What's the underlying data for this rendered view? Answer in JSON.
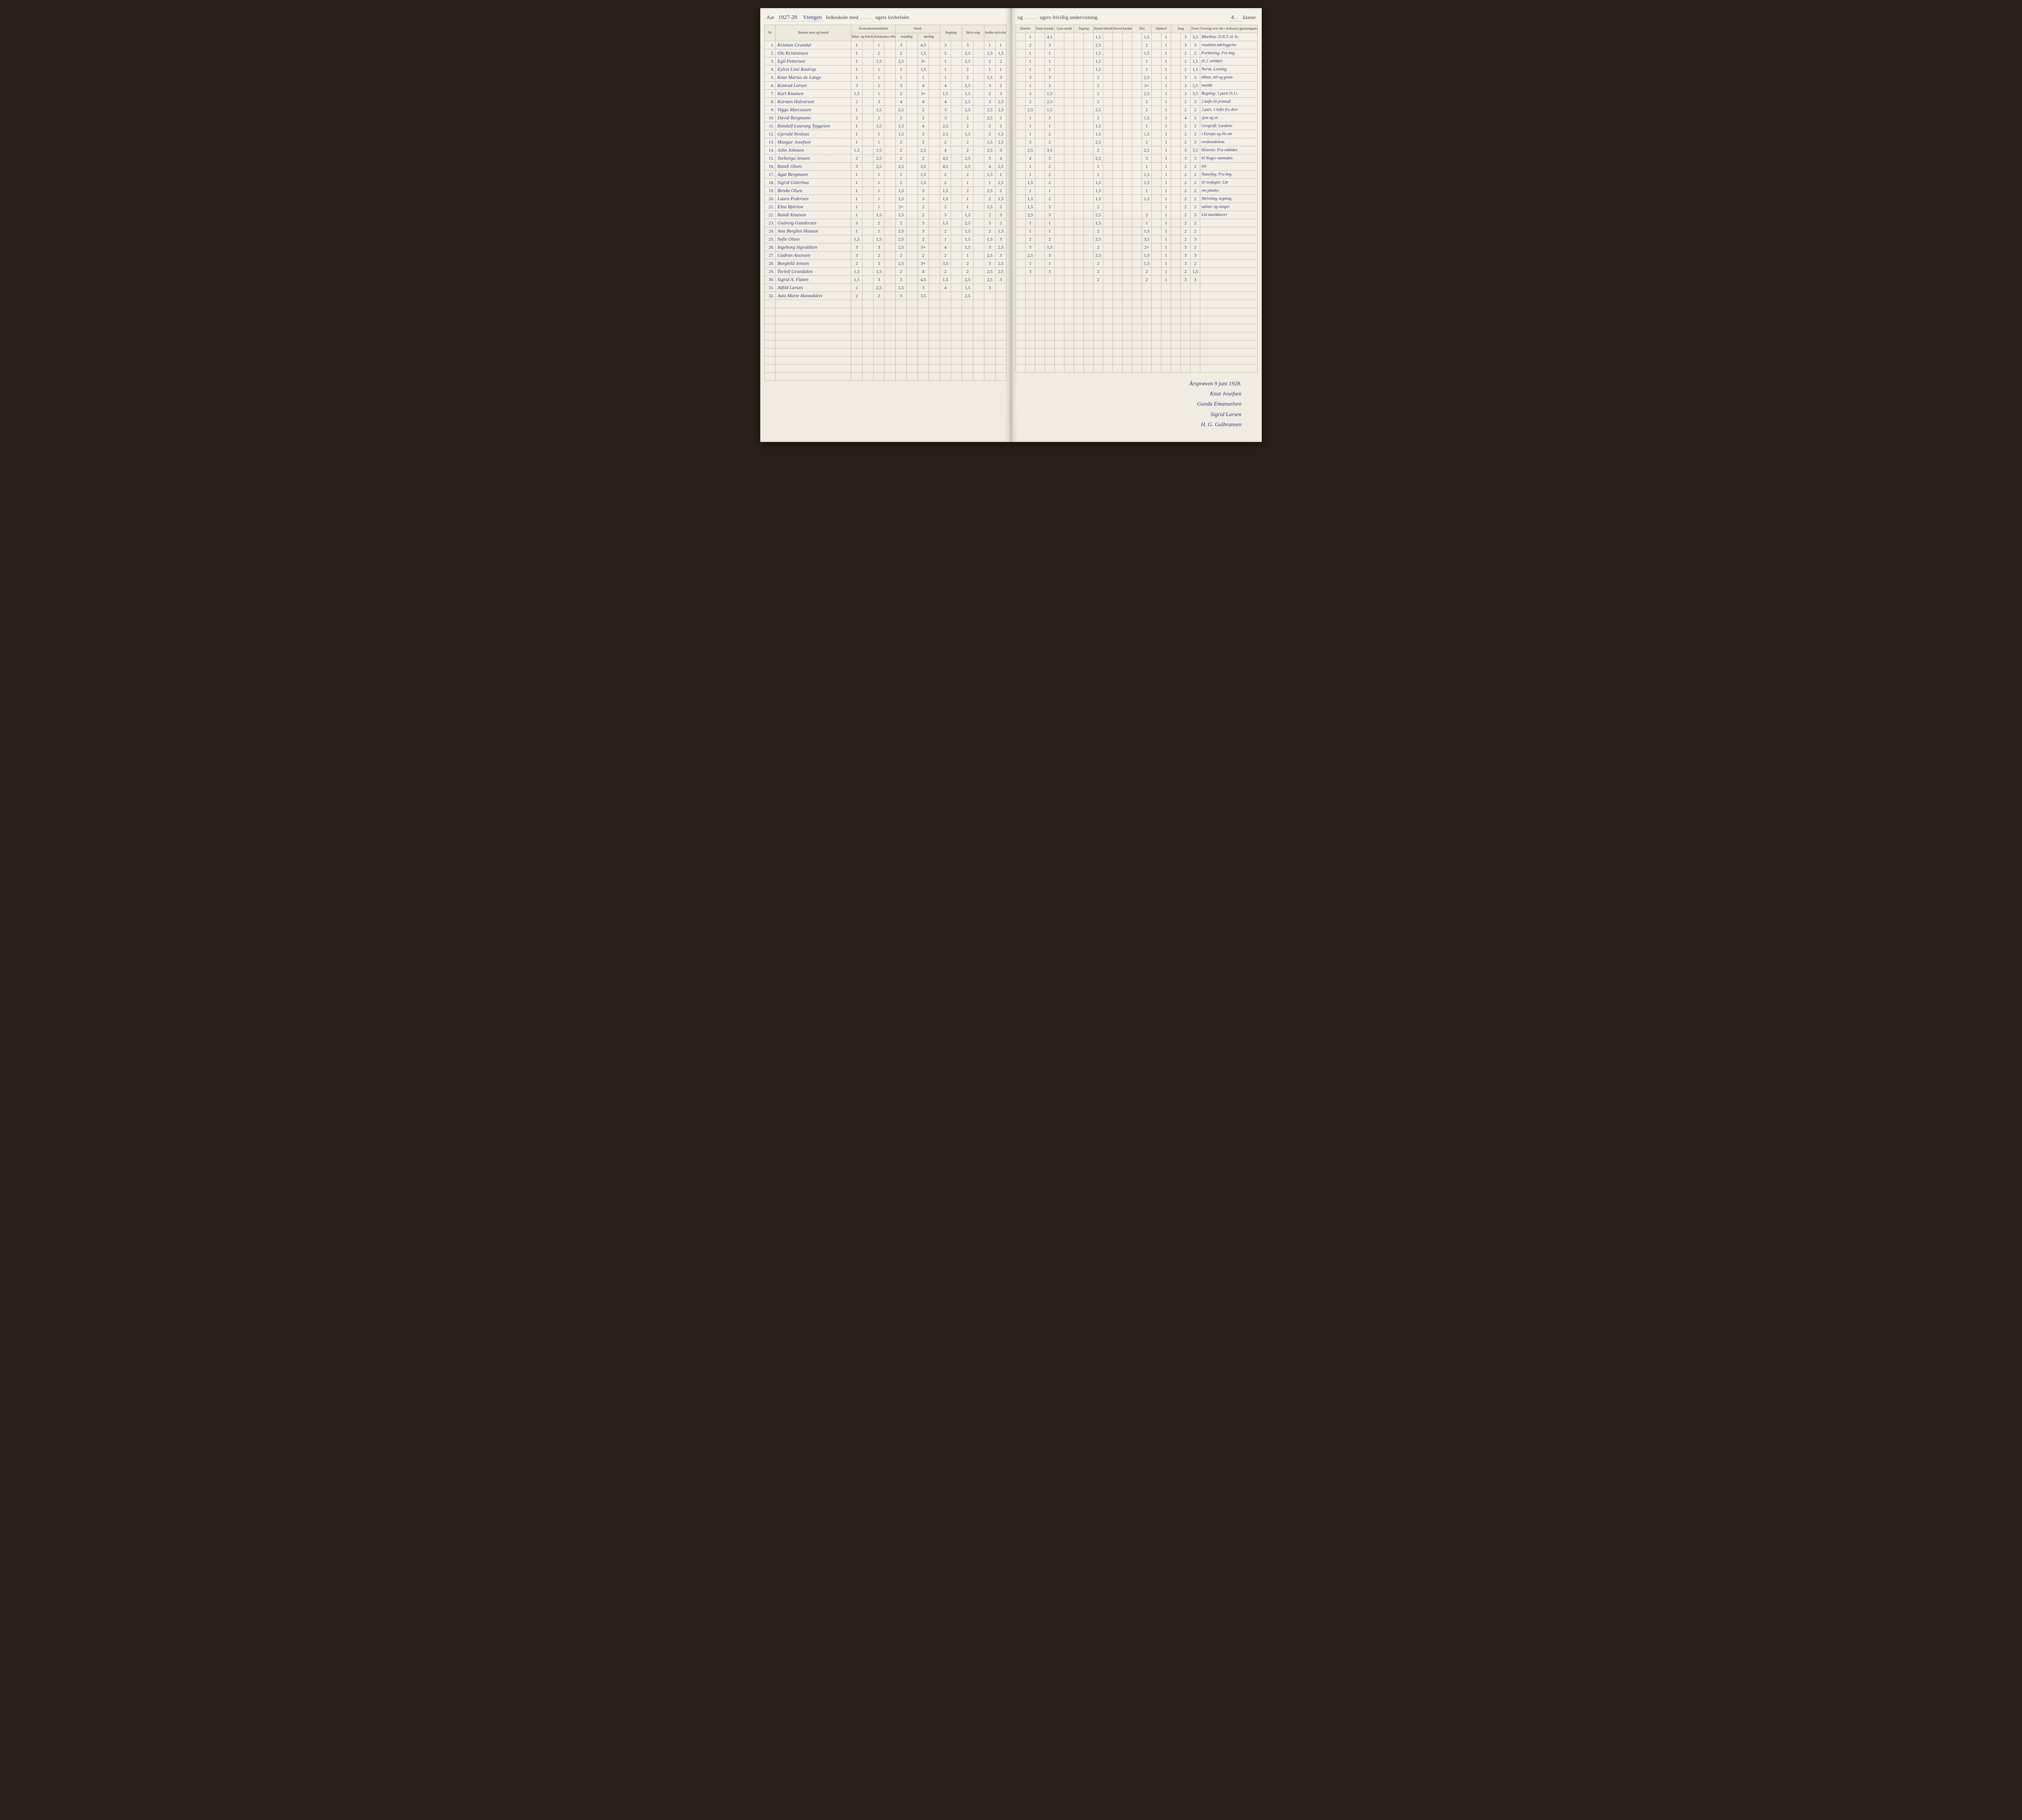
{
  "header": {
    "aar_label": "Aar",
    "aar_value": "1927-28",
    "school": "Vrengen",
    "text1": "folkeskole med",
    "ugers1": "",
    "text2": "ugers lovbefalet",
    "og": "og",
    "ugers2": "",
    "text3": "ugers frivillig undervisning.",
    "klasse_value": "4.",
    "klasse_label": "klasse"
  },
  "columns_left": {
    "nr": "Nr.",
    "name": "Barnets navn og bosted",
    "kristen": "Kristendomskundskab",
    "bibel": "Bibel- og kirkehistorie",
    "katek": "Katekismus eller forklaring",
    "norsk": "Norsk",
    "mundtlig": "mundtlig",
    "skriftlig": "skriftlig",
    "regning": "Regning",
    "skrivning": "Skriv-ning",
    "jordb": "Jordbe-skrivelse"
  },
  "columns_right": {
    "historie": "Historie",
    "natur": "Natur-kundsk.",
    "gym": "Gym-nastik",
    "tegning": "Tegning",
    "haand": "Haand-arbeide",
    "hovedk": "Hoved-karakter",
    "flid": "Flid",
    "opforsel": "Opførsel",
    "sang": "Sang",
    "evner": "Evner",
    "oversigt": "Oversigt over det i skoleaaret gjennemgaaede"
  },
  "rows": [
    {
      "nr": "1.",
      "name": "Kristian Grandal",
      "l": [
        "1",
        "",
        "1",
        "",
        "3",
        "",
        "4,5",
        "",
        "3",
        "",
        "3",
        "",
        "1",
        "1"
      ],
      "r": [
        "",
        "1",
        "",
        "4,5",
        "",
        "",
        "",
        "",
        "1,5",
        "",
        "",
        "",
        "",
        "1,5",
        "",
        "1",
        "",
        "3",
        "3,5"
      ],
      "o": "Bibelhist: D.N.T. til Je-"
    },
    {
      "nr": "2.",
      "name": "Ole Kristiansen",
      "l": [
        "1",
        "",
        "2",
        "",
        "2",
        "",
        "1,5",
        "",
        "2",
        "",
        "2,5",
        "",
        "1,5",
        "1,5"
      ],
      "r": [
        "",
        "2",
        "",
        "3",
        "",
        "",
        "",
        "",
        "2,5",
        "",
        "",
        "",
        "",
        "2",
        "",
        "1",
        "",
        "3",
        "3"
      ],
      "o": "rusalems ødeleggelse."
    },
    {
      "nr": "3.",
      "name": "Egil Pettersen",
      "l": [
        "1",
        "",
        "1,5",
        "",
        "2,5",
        "",
        "3+",
        "",
        "1",
        "",
        "2,5",
        "",
        "2",
        "2"
      ],
      "r": [
        "",
        "1",
        "",
        "1",
        "",
        "",
        "",
        "",
        "1,5",
        "",
        "",
        "",
        "",
        "1,5",
        "",
        "1",
        "",
        "2",
        "2"
      ],
      "o": "Forklaring: Fra beg."
    },
    {
      "nr": "4.",
      "name": "Eylert Linö Rostrup",
      "l": [
        "1",
        "",
        "1",
        "",
        "1",
        "",
        "1,5",
        "",
        "1",
        "",
        "2",
        "",
        "1",
        "1"
      ],
      "r": [
        "",
        "1",
        "",
        "1",
        "",
        "",
        "",
        "",
        "1,5",
        "",
        "",
        "",
        "",
        "1",
        "",
        "1",
        "",
        "2",
        "1,5"
      ],
      "o": "til 2. artikkel"
    },
    {
      "nr": "5.",
      "name": "Knut Marius de Lange",
      "l": [
        "1",
        "",
        "1",
        "",
        "1",
        "",
        "1",
        "",
        "1",
        "",
        "2",
        "",
        "1,5",
        "3"
      ],
      "r": [
        "",
        "1",
        "",
        "1",
        "",
        "",
        "",
        "",
        "1,5",
        "",
        "",
        "",
        "",
        "1",
        "",
        "1",
        "",
        "2",
        "1,5"
      ],
      "o": "Norsk: Lesning,"
    },
    {
      "nr": "6.",
      "name": "Konrad Larsen",
      "l": [
        "3",
        "",
        "2",
        "",
        "3",
        "",
        "4",
        "",
        "4",
        "",
        "2,5",
        "",
        "3",
        "2"
      ],
      "r": [
        "",
        "3",
        "",
        "3",
        "",
        "",
        "",
        "",
        "2",
        "",
        "",
        "",
        "",
        "2,5",
        "",
        "1",
        "",
        "3",
        "3"
      ],
      "o": "diktat, stil og gram-"
    },
    {
      "nr": "7.",
      "name": "Karl Knutsen",
      "l": [
        "1,5",
        "",
        "1",
        "",
        "2",
        "",
        "3+",
        "",
        "1,5",
        "",
        "1,5",
        "",
        "2",
        "3"
      ],
      "r": [
        "",
        "1",
        "",
        "3",
        "",
        "",
        "",
        "",
        "2",
        "",
        "",
        "",
        "",
        "2+",
        "",
        "1",
        "",
        "3",
        "2,5"
      ],
      "o": "matikk"
    },
    {
      "nr": "8.",
      "name": "Karsten Halvorsen",
      "l": [
        "2",
        "",
        "3",
        "",
        "4",
        "",
        "4",
        "",
        "4",
        "",
        "2,5",
        "",
        "3",
        "2,5"
      ],
      "r": [
        "",
        "3",
        "",
        "1,5",
        "",
        "",
        "",
        "",
        "2",
        "",
        "",
        "",
        "",
        "2,5",
        "",
        "1",
        "",
        "3",
        "3,5"
      ],
      "o": "Regning: 1.parti O.J.s"
    },
    {
      "nr": "9.",
      "name": "Viggo Marcussen",
      "l": [
        "1",
        "",
        "1,5",
        "",
        "2,5",
        "",
        "2",
        "",
        "3",
        "",
        "2,5",
        "",
        "2,5",
        "2,5"
      ],
      "r": [
        "",
        "2",
        "",
        "2,5",
        "",
        "",
        "",
        "",
        "2",
        "",
        "",
        "",
        "",
        "2",
        "",
        "1",
        "",
        "2",
        "3"
      ],
      "o": "2.hefte til primtall"
    },
    {
      "nr": "10.",
      "name": "David Bergmann",
      "l": [
        "2",
        "",
        "2",
        "",
        "2",
        "",
        "2",
        "",
        "3",
        "",
        "2",
        "",
        "2,5",
        "2"
      ],
      "r": [
        "",
        "2,5",
        "",
        "1,5",
        "",
        "",
        "",
        "",
        "2,5",
        "",
        "",
        "",
        "",
        "2",
        "",
        "1",
        "",
        "2",
        "2"
      ],
      "o": "2.part. 1.hefte fra divi-"
    },
    {
      "nr": "11.",
      "name": "Randulf Laurang Tyggesen",
      "l": [
        "1",
        "",
        "1,5",
        "",
        "1,5",
        "",
        "4",
        "",
        "2,5",
        "",
        "2",
        "",
        "2",
        "2"
      ],
      "r": [
        "",
        "1",
        "",
        "3",
        "",
        "",
        "",
        "",
        "2",
        "",
        "",
        "",
        "",
        "1,5",
        "",
        "1",
        "",
        "4",
        "3"
      ],
      "o": "sjon og ut."
    },
    {
      "nr": "12.",
      "name": "Gjeruld Neslaus",
      "l": [
        "1",
        "",
        "1",
        "",
        "1,5",
        "",
        "3",
        "",
        "2,5",
        "",
        "1,5",
        "",
        "2",
        "1,5"
      ],
      "r": [
        "",
        "1",
        "",
        "1",
        "",
        "",
        "",
        "",
        "1,5",
        "",
        "",
        "",
        "",
        "1",
        "",
        "1",
        "",
        "2",
        "2"
      ],
      "o": "Geografi: Landene"
    },
    {
      "nr": "13.",
      "name": "Mangor Josefsen",
      "l": [
        "1",
        "",
        "1",
        "",
        "2",
        "",
        "2",
        "",
        "2",
        "",
        "2",
        "",
        "1,5",
        "2,5"
      ],
      "r": [
        "",
        "1",
        "",
        "2",
        "",
        "",
        "",
        "",
        "1,5",
        "",
        "",
        "",
        "",
        "1,5",
        "",
        "1",
        "",
        "2",
        "2"
      ],
      "o": "i Europa og litt om"
    },
    {
      "nr": "14.",
      "name": "John Johnsen",
      "l": [
        "1,5",
        "",
        "1,5",
        "",
        "2",
        "",
        "2,5",
        "",
        "4",
        "",
        "2",
        "",
        "2,5",
        "3"
      ],
      "r": [
        "",
        "3",
        "",
        "2",
        "",
        "",
        "",
        "",
        "2,5",
        "",
        "",
        "",
        "",
        "2",
        "",
        "1",
        "",
        "2",
        "3"
      ],
      "o": "verdensdelene."
    },
    {
      "nr": "15.",
      "name": "Torborga Jensen",
      "l": [
        "2",
        "",
        "2,5",
        "",
        "2",
        "",
        "2",
        "",
        "4,5",
        "",
        "2,5",
        "",
        "3",
        "4"
      ],
      "r": [
        "",
        "2,5",
        "",
        "3,5",
        "",
        "",
        "",
        "",
        "2",
        "",
        "",
        "",
        "",
        "2,5",
        "",
        "1",
        "",
        "3",
        "3,5"
      ],
      "o": "Historie: Fra oldtiden"
    },
    {
      "nr": "16.",
      "name": "Randi Olsen",
      "l": [
        "3",
        "",
        "2,5",
        "",
        "2,5",
        "",
        "3,5",
        "",
        "4,5",
        "",
        "2,5",
        "",
        "4",
        "2,5"
      ],
      "r": [
        "",
        "4",
        "",
        "3",
        "",
        "",
        "",
        "",
        "2,5",
        "",
        "",
        "",
        "",
        "3",
        "",
        "1",
        "",
        "3",
        "3"
      ],
      "o": "til Noges vanmakts-"
    },
    {
      "nr": "17.",
      "name": "Agat Bergmann",
      "l": [
        "1",
        "",
        "1",
        "",
        "1",
        "",
        "1,5",
        "",
        "2",
        "",
        "2",
        "",
        "1,5",
        "1"
      ],
      "r": [
        "",
        "1",
        "",
        "2",
        "",
        "",
        "",
        "",
        "1",
        "",
        "",
        "",
        "",
        "1",
        "",
        "1",
        "",
        "2",
        "2"
      ],
      "o": "tid"
    },
    {
      "nr": "18.",
      "name": "Sigrid Gitterhus",
      "l": [
        "1",
        "",
        "1",
        "",
        "2",
        "",
        "1,5",
        "",
        "2",
        "",
        "1",
        "",
        "1",
        "2,5"
      ],
      "r": [
        "",
        "1",
        "",
        "2",
        "",
        "",
        "",
        "",
        "1",
        "",
        "",
        "",
        "",
        "1,5",
        "",
        "1",
        "",
        "2",
        "2"
      ],
      "o": "Naturfag: Fra beg."
    },
    {
      "nr": "19.",
      "name": "Benda Olsen",
      "l": [
        "1",
        "",
        "1",
        "",
        "1,5",
        "",
        "3",
        "",
        "1,5",
        "",
        "2",
        "",
        "2,5",
        "2"
      ],
      "r": [
        "",
        "1,5",
        "",
        "2",
        "",
        "",
        "",
        "",
        "1,5",
        "",
        "",
        "",
        "",
        "1,5",
        "",
        "1",
        "",
        "2",
        "2"
      ],
      "o": "til rovfugler. Litt"
    },
    {
      "nr": "20.",
      "name": "Laura Pedersen",
      "l": [
        "1",
        "",
        "1",
        "",
        "1,5",
        "",
        "3",
        "",
        "1,5",
        "",
        "1",
        "",
        "2",
        "1,5"
      ],
      "r": [
        "",
        "1",
        "",
        "1",
        "",
        "",
        "",
        "",
        "1,5",
        "",
        "",
        "",
        "",
        "1",
        "",
        "1",
        "",
        "2",
        "2"
      ],
      "o": "om planter."
    },
    {
      "nr": "21.",
      "name": "Elna Björlow",
      "l": [
        "1",
        "",
        "1",
        "",
        "2+",
        "",
        "2",
        "",
        "2",
        "",
        "1",
        "",
        "1,5",
        "2"
      ],
      "r": [
        "",
        "1,5",
        "",
        "2",
        "",
        "",
        "",
        "",
        "1,5",
        "",
        "",
        "",
        "",
        "1,5",
        "",
        "1",
        "",
        "2",
        "2"
      ],
      "o": "Skrivning, tegning,"
    },
    {
      "nr": "22.",
      "name": "Randi Knutsen",
      "l": [
        "1",
        "",
        "1,5",
        "",
        "1,5",
        "",
        "2",
        "",
        "3",
        "",
        "1,5",
        "",
        "2",
        "3"
      ],
      "r": [
        "",
        "1,5",
        "",
        "3",
        "",
        "",
        "",
        "",
        "2",
        "",
        "",
        "",
        "",
        "",
        "",
        "1",
        "",
        "2",
        "2"
      ],
      "o": "salmer og sanger."
    },
    {
      "nr": "23.",
      "name": "Gudveig Gundersen",
      "l": [
        "3",
        "",
        "2",
        "",
        "2",
        "",
        "3",
        "",
        "1,5",
        "",
        "2,5",
        "",
        "3",
        "2"
      ],
      "r": [
        "",
        "2,5",
        "",
        "3",
        "",
        "",
        "",
        "",
        "2,5",
        "",
        "",
        "",
        "",
        "2",
        "",
        "1",
        "",
        "2",
        "3"
      ],
      "o": "Litt musikkteori"
    },
    {
      "nr": "24.",
      "name": "Ana Bergliot Hansen",
      "l": [
        "1",
        "",
        "1",
        "",
        "2,5",
        "",
        "3",
        "",
        "2",
        "",
        "1,5",
        "",
        "2",
        "1,5"
      ],
      "r": [
        "",
        "1",
        "",
        "1",
        "",
        "",
        "",
        "",
        "1,5",
        "",
        "",
        "",
        "",
        "1",
        "",
        "1",
        "",
        "2",
        "2"
      ],
      "o": ""
    },
    {
      "nr": "25.",
      "name": "Sofie Olsen",
      "l": [
        "1,5",
        "",
        "1,5",
        "",
        "2,5",
        "",
        "2",
        "",
        "1",
        "",
        "1,5",
        "",
        "1,5",
        "3"
      ],
      "r": [
        "",
        "1",
        "",
        "1",
        "",
        "",
        "",
        "",
        "2",
        "",
        "",
        "",
        "",
        "1,5",
        "",
        "1",
        "",
        "2",
        "2"
      ],
      "o": ""
    },
    {
      "nr": "26.",
      "name": "Ingeborg Sigvaldsen",
      "l": [
        "3",
        "",
        "3",
        "",
        "2,5",
        "",
        "3+",
        "",
        "4",
        "",
        "1,5",
        "",
        "3",
        "2,5"
      ],
      "r": [
        "",
        "2",
        "",
        "2",
        "",
        "",
        "",
        "",
        "2,5",
        "",
        "",
        "",
        "",
        "3,5",
        "",
        "1",
        "",
        "2",
        "3"
      ],
      "o": ""
    },
    {
      "nr": "27.",
      "name": "Gudrun Anonsen",
      "l": [
        "3",
        "",
        "2",
        "",
        "2",
        "",
        "2",
        "",
        "2",
        "",
        "1",
        "",
        "2,5",
        "3"
      ],
      "r": [
        "",
        "3",
        "",
        "1,5",
        "",
        "",
        "",
        "",
        "2",
        "",
        "",
        "",
        "",
        "2+",
        "",
        "1",
        "",
        "3",
        "2"
      ],
      "o": ""
    },
    {
      "nr": "28.",
      "name": "Borghild Jensen",
      "l": [
        "2",
        "",
        "3",
        "",
        "2,5",
        "",
        "3+",
        "",
        "3,5",
        "",
        "2",
        "",
        "3",
        "2,5"
      ],
      "r": [
        "",
        "2,5",
        "",
        "3",
        "",
        "",
        "",
        "",
        "2,5",
        "",
        "",
        "",
        "",
        "1,5",
        "",
        "1",
        "",
        "3",
        "3"
      ],
      "o": ""
    },
    {
      "nr": "29.",
      "name": "Torleif Grandalen",
      "l": [
        "1,5",
        "",
        "1,5",
        "",
        "2",
        "",
        "4",
        "",
        "2",
        "",
        "2",
        "",
        "2,5",
        "2,5"
      ],
      "r": [
        "",
        "1",
        "",
        "1",
        "",
        "",
        "",
        "",
        "2",
        "",
        "",
        "",
        "",
        "1,5",
        "",
        "1",
        "",
        "3",
        "2"
      ],
      "o": ""
    },
    {
      "nr": "30.",
      "name": "Sigrid A. Flaten",
      "l": [
        "1,5",
        "",
        "3",
        "",
        "3",
        "",
        "4,5",
        "",
        "1,5",
        "",
        "2,5",
        "",
        "2,5",
        "3"
      ],
      "r": [
        "",
        "3",
        "",
        "3",
        "",
        "",
        "",
        "",
        "2",
        "",
        "",
        "",
        "",
        "2",
        "",
        "1",
        "",
        "2",
        "1,5"
      ],
      "o": ""
    },
    {
      "nr": "31.",
      "name": "Alfild Larsen",
      "l": [
        "2",
        "",
        "2,5",
        "",
        "1,5",
        "",
        "3",
        "",
        "4",
        "",
        "1,5",
        "",
        "3",
        ""
      ],
      "r": [
        "",
        "",
        "",
        "",
        "",
        "",
        "",
        "",
        "2",
        "",
        "",
        "",
        "",
        "2",
        "",
        "1",
        "",
        "3",
        "3"
      ],
      "o": ""
    },
    {
      "nr": "32.",
      "name": "Asta Marie Hannekleiv",
      "l": [
        "2",
        "",
        "2",
        "",
        "3",
        "",
        "3,5",
        "",
        "",
        "",
        "2,5",
        "",
        "",
        ""
      ],
      "r": [
        "",
        "",
        "",
        "",
        "",
        "",
        "",
        "",
        "",
        "",
        "",
        "",
        "",
        "",
        "",
        "",
        "",
        "",
        ""
      ],
      "o": ""
    }
  ],
  "signatures": {
    "date": "Årsprøven 9 juni 1928.",
    "sig1": "Knut Josefsen",
    "sig2": "Gunda Emanuelsen",
    "sig3": "Sigrid Larsen",
    "sig4": "H. G. Gulbransen"
  }
}
